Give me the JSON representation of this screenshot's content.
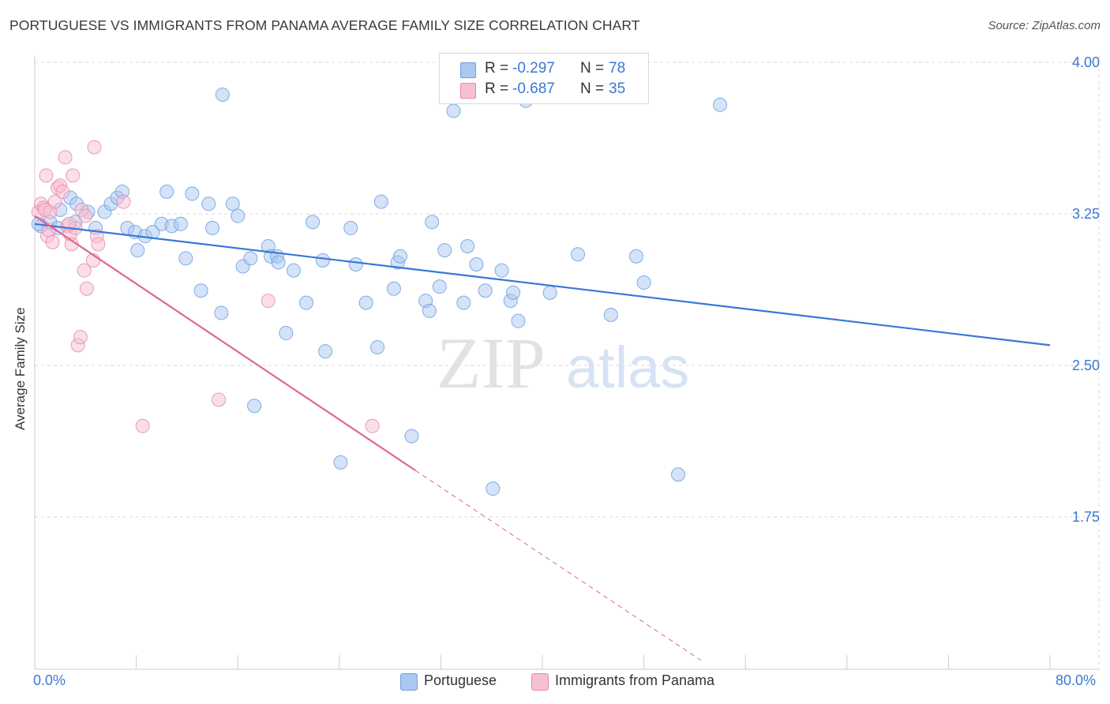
{
  "header": {
    "title": "PORTUGUESE VS IMMIGRANTS FROM PANAMA AVERAGE FAMILY SIZE CORRELATION CHART",
    "source": "Source: ZipAtlas.com"
  },
  "watermark": {
    "zip": "ZIP",
    "atlas": "atlas"
  },
  "legend": {
    "r_label": "R =",
    "n_label": "N =",
    "rows": [
      {
        "r": "-0.297",
        "n": "78",
        "color": "#aac8f2",
        "border": "#6f9fdf"
      },
      {
        "r": "-0.687",
        "n": "35",
        "color": "#f7bfd2",
        "border": "#e889aa"
      }
    ]
  },
  "bottom_legend": [
    {
      "label": "Portuguese",
      "color": "#aac8f2",
      "border": "#6f9fdf"
    },
    {
      "label": "Immigrants from Panama",
      "color": "#f7bfd2",
      "border": "#e889aa"
    }
  ],
  "colors": {
    "blue_line": "#3a78d6",
    "pink_line": "#e0668f",
    "grid": "#d8d8d8",
    "tick_text": "#3a78d6"
  },
  "chart_data": {
    "type": "scatter",
    "xlabel": "",
    "ylabel": "Average Family Size",
    "xlim": [
      0,
      80
    ],
    "ylim": [
      1.0,
      4.1
    ],
    "x_tick_labels": [
      "0.0%",
      "80.0%"
    ],
    "y_ticks": [
      1.75,
      2.5,
      3.25,
      4.0
    ],
    "y_tick_labels": [
      "1.75",
      "2.50",
      "3.25",
      "4.00"
    ],
    "grid": true,
    "legend_position": "top-center",
    "series": [
      {
        "name": "Portuguese",
        "color": "#aac8f2",
        "points": [
          [
            0.5,
            3.19
          ],
          [
            1.2,
            3.21
          ],
          [
            2.0,
            3.27
          ],
          [
            2.8,
            3.33
          ],
          [
            3.3,
            3.3
          ],
          [
            4.2,
            3.26
          ],
          [
            5.5,
            3.26
          ],
          [
            6.0,
            3.3
          ],
          [
            6.5,
            3.33
          ],
          [
            6.9,
            3.36
          ],
          [
            1.8,
            3.18
          ],
          [
            4.8,
            3.18
          ],
          [
            7.3,
            3.18
          ],
          [
            7.9,
            3.16
          ],
          [
            8.1,
            3.07
          ],
          [
            8.7,
            3.14
          ],
          [
            9.3,
            3.16
          ],
          [
            10.0,
            3.2
          ],
          [
            10.4,
            3.36
          ],
          [
            10.8,
            3.19
          ],
          [
            11.5,
            3.2
          ],
          [
            11.9,
            3.03
          ],
          [
            12.4,
            3.35
          ],
          [
            13.1,
            2.87
          ],
          [
            13.7,
            3.3
          ],
          [
            14.0,
            3.18
          ],
          [
            14.7,
            2.76
          ],
          [
            14.8,
            3.84
          ],
          [
            15.6,
            3.3
          ],
          [
            16.0,
            3.24
          ],
          [
            16.4,
            2.99
          ],
          [
            17.0,
            3.03
          ],
          [
            17.3,
            2.3
          ],
          [
            18.4,
            3.09
          ],
          [
            18.6,
            3.04
          ],
          [
            19.1,
            3.04
          ],
          [
            19.2,
            3.01
          ],
          [
            19.8,
            2.66
          ],
          [
            20.4,
            2.97
          ],
          [
            21.4,
            2.81
          ],
          [
            21.9,
            3.21
          ],
          [
            22.7,
            3.02
          ],
          [
            22.9,
            2.57
          ],
          [
            24.9,
            3.18
          ],
          [
            25.3,
            3.0
          ],
          [
            26.1,
            2.81
          ],
          [
            27.0,
            2.59
          ],
          [
            27.3,
            3.31
          ],
          [
            28.3,
            2.88
          ],
          [
            28.6,
            3.01
          ],
          [
            28.8,
            3.04
          ],
          [
            29.7,
            2.15
          ],
          [
            30.8,
            2.82
          ],
          [
            31.1,
            2.77
          ],
          [
            31.3,
            3.21
          ],
          [
            31.9,
            2.89
          ],
          [
            32.3,
            3.07
          ],
          [
            33.0,
            3.76
          ],
          [
            33.8,
            2.81
          ],
          [
            34.1,
            3.09
          ],
          [
            34.8,
            3.0
          ],
          [
            35.5,
            2.87
          ],
          [
            36.1,
            1.89
          ],
          [
            36.8,
            2.97
          ],
          [
            37.5,
            2.82
          ],
          [
            37.7,
            2.86
          ],
          [
            38.1,
            2.72
          ],
          [
            38.7,
            3.81
          ],
          [
            40.6,
            2.86
          ],
          [
            42.8,
            3.05
          ],
          [
            45.4,
            2.75
          ],
          [
            47.4,
            3.04
          ],
          [
            48.0,
            2.91
          ],
          [
            50.7,
            1.96
          ],
          [
            54.0,
            3.79
          ],
          [
            24.1,
            2.02
          ],
          [
            3.2,
            3.21
          ],
          [
            0.3,
            3.2
          ]
        ]
      },
      {
        "name": "Immigrants from Panama",
        "color": "#f7bfd2",
        "points": [
          [
            0.3,
            3.26
          ],
          [
            0.5,
            3.3
          ],
          [
            0.7,
            3.28
          ],
          [
            0.9,
            3.44
          ],
          [
            1.0,
            3.14
          ],
          [
            1.2,
            3.26
          ],
          [
            1.4,
            3.11
          ],
          [
            1.6,
            3.31
          ],
          [
            1.8,
            3.38
          ],
          [
            2.0,
            3.39
          ],
          [
            2.2,
            3.36
          ],
          [
            2.4,
            3.53
          ],
          [
            2.6,
            3.19
          ],
          [
            2.8,
            3.15
          ],
          [
            2.9,
            3.1
          ],
          [
            3.0,
            3.44
          ],
          [
            3.2,
            3.18
          ],
          [
            3.4,
            2.6
          ],
          [
            3.6,
            2.64
          ],
          [
            3.7,
            3.27
          ],
          [
            3.9,
            2.97
          ],
          [
            4.0,
            3.24
          ],
          [
            4.1,
            2.88
          ],
          [
            4.6,
            3.02
          ],
          [
            4.7,
            3.58
          ],
          [
            4.9,
            3.14
          ],
          [
            5.0,
            3.1
          ],
          [
            7.0,
            3.31
          ],
          [
            8.5,
            2.2
          ],
          [
            14.5,
            2.33
          ],
          [
            18.4,
            2.82
          ],
          [
            26.6,
            2.2
          ],
          [
            0.8,
            3.27
          ],
          [
            1.1,
            3.17
          ],
          [
            2.7,
            3.2
          ]
        ]
      }
    ],
    "trend_lines": [
      {
        "series": "Portuguese",
        "x": [
          0,
          80
        ],
        "y": [
          3.2,
          2.6
        ],
        "style": "solid"
      },
      {
        "series": "Immigrants from Panama",
        "x": [
          0,
          30
        ],
        "y": [
          3.24,
          1.98
        ],
        "style": "solid"
      },
      {
        "series": "Immigrants from Panama",
        "x": [
          30,
          52.5
        ],
        "y": [
          1.98,
          1.04
        ],
        "style": "dashed"
      }
    ]
  }
}
